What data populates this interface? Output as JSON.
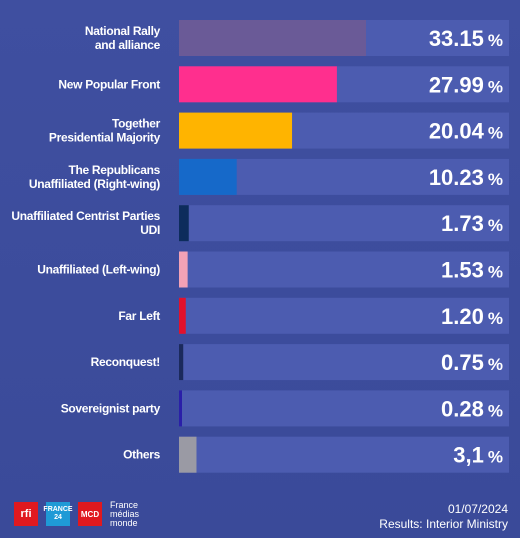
{
  "chart_data": {
    "type": "bar",
    "orientation": "horizontal",
    "unit": "%",
    "xlim": [
      0,
      33.15
    ],
    "grid": false,
    "categories": [
      [
        "National Rally",
        "and alliance"
      ],
      [
        "New Popular Front"
      ],
      [
        "Together",
        "Presidential Majority"
      ],
      [
        "The Republicans",
        "Unaffiliated (Right-wing)"
      ],
      [
        "Unaffiliated Centrist Parties",
        "UDI"
      ],
      [
        "Unaffiliated (Left-wing)"
      ],
      [
        "Far Left"
      ],
      [
        "Reconquest!"
      ],
      [
        "Sovereignist party"
      ],
      [
        "Others"
      ]
    ],
    "values": [
      33.15,
      27.99,
      20.04,
      10.23,
      1.73,
      1.53,
      1.2,
      0.75,
      0.28,
      3.1
    ],
    "value_labels": [
      "33.15",
      "27.99",
      "20.04",
      "10.23",
      "1.73",
      "1.53",
      "1.20",
      "0.75",
      "0.28",
      "3,1"
    ],
    "colors": [
      "#6a5a97",
      "#ff2f8e",
      "#ffb400",
      "#1669c9",
      "#0d2c5c",
      "#f3a2b6",
      "#e3112c",
      "#1b2a5c",
      "#2a1fa8",
      "#9a9aa4"
    ]
  },
  "footer": {
    "logos": {
      "rfi": "rfi",
      "france24": [
        "FRANCE",
        "24"
      ],
      "mco": "MCD",
      "fmm": [
        "France",
        "médias",
        "monde"
      ]
    },
    "date": "01/07/2024",
    "source": "Results: Interior Ministry"
  }
}
